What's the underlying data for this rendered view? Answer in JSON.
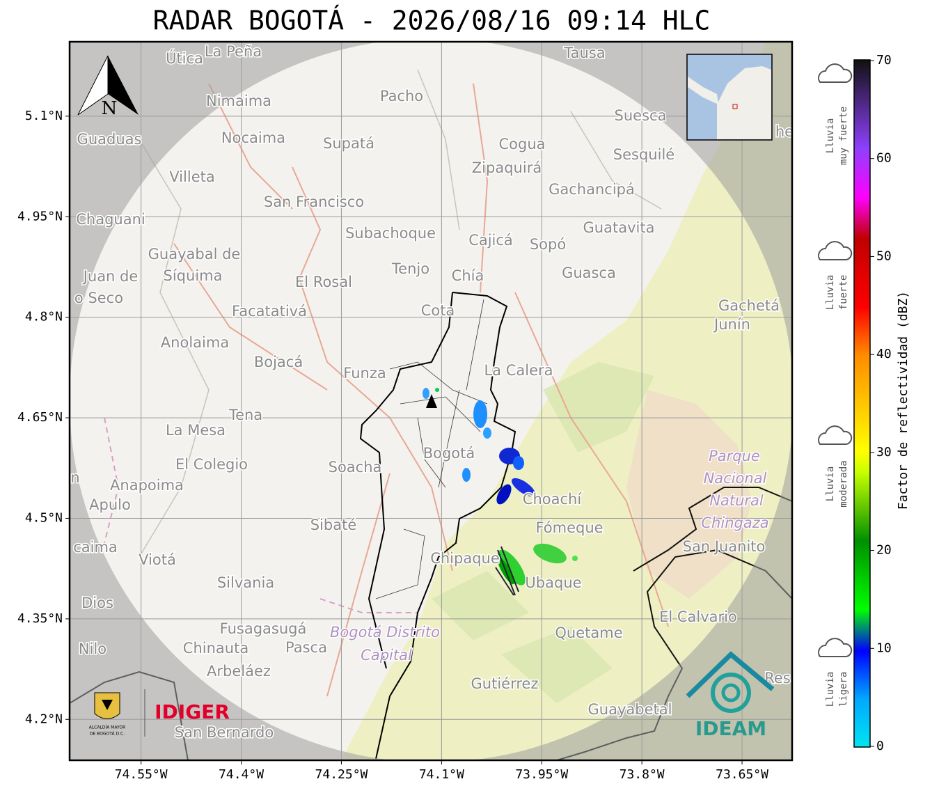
{
  "title": "RADAR BOGOTÁ - 2026/08/16 09:14 HLC",
  "map": {
    "xlim": [
      -74.657,
      -73.575
    ],
    "ylim": [
      4.139,
      5.211
    ],
    "xticks": [
      {
        "value": -74.55,
        "label": "74.55°W"
      },
      {
        "value": -74.4,
        "label": "74.4°W"
      },
      {
        "value": -74.25,
        "label": "74.25°W"
      },
      {
        "value": -74.1,
        "label": "74.1°W"
      },
      {
        "value": -73.95,
        "label": "73.95°W"
      },
      {
        "value": -73.8,
        "label": "73.8°W"
      },
      {
        "value": -73.65,
        "label": "73.65°W"
      }
    ],
    "yticks": [
      {
        "value": 5.1,
        "label": "5.1°N"
      },
      {
        "value": 4.95,
        "label": "4.95°N"
      },
      {
        "value": 4.8,
        "label": "4.8°N"
      },
      {
        "value": 4.65,
        "label": "4.65°N"
      },
      {
        "value": 4.5,
        "label": "4.5°N"
      },
      {
        "value": 4.35,
        "label": "4.35°N"
      },
      {
        "value": 4.2,
        "label": "4.2°N"
      }
    ],
    "north_label": "N",
    "places": [
      "Útica",
      "La Peña",
      "Tausa",
      "Pacho",
      "Nimaima",
      "Guaduas",
      "Nocaima",
      "Supatá",
      "Cogua",
      "Suesca",
      "Sesquilé",
      "Villeta",
      "Zipaquirá",
      "Gachancipá",
      "San Francisco",
      "Chaguani",
      "Subachoque",
      "Guatavita",
      "Cajicá",
      "Sopó",
      "Guayabal de",
      "Síquima",
      "Juan de",
      "Tenjo",
      "Chía",
      "Guasca",
      "El Rosal",
      "o Seco",
      "Facatativá",
      "Cota",
      "Gachetá",
      "Junín",
      "Anolaima",
      "Bojacá",
      "Funza",
      "La Calera",
      "Tena",
      "La Mesa",
      "Parque",
      "Nacional",
      "Natural",
      "Chingaza",
      "El Colegio",
      "Soacha",
      "Bogotá",
      "n",
      "Anapoima",
      "Choachí",
      "Apulo",
      "Sibaté",
      "Fómeque",
      "San Juanito",
      "caima",
      "Viotá",
      "Chipaque",
      "Ubaque",
      "Silvania",
      "Dios",
      "El Calvario",
      "Fusagasugá",
      "Bogotá Distrito",
      "Capital",
      "Quetame",
      "Nilo",
      "Chinauta",
      "Pasca",
      "Arbeláez",
      "Res",
      "Gutiérrez",
      "Guayabetal",
      "San Bernardo",
      "he"
    ]
  },
  "colorbar": {
    "label": "Factor de reflectividad (dBZ)",
    "clim": [
      0,
      70
    ],
    "ticks": [
      0,
      10,
      20,
      30,
      40,
      50,
      60,
      70
    ]
  },
  "rain_categories": [
    {
      "lines": [
        "Lluvia",
        "muy fuerte"
      ]
    },
    {
      "lines": [
        "Lluvia",
        "fuerte"
      ]
    },
    {
      "lines": [
        "Lluvia",
        "moderada"
      ]
    },
    {
      "lines": [
        "Lluvia",
        "ligera"
      ]
    }
  ],
  "logos": {
    "idiger": "IDIGER",
    "ideam": "IDEAM",
    "alcaldia": [
      "ALCALDÍA MAYOR",
      "DE BOGOTÁ D.C."
    ]
  }
}
